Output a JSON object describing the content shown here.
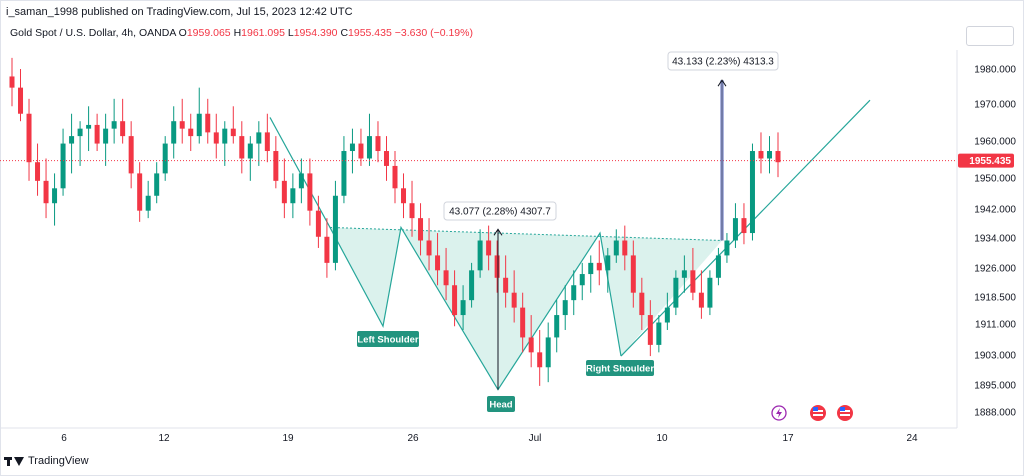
{
  "header": {
    "published": "i_saman_1998 published on TradingView.com, Jul 15, 2023 12:42 UTC"
  },
  "legend": {
    "symbol": "Gold Spot / U.S. Dollar, 4h, OANDA",
    "open_label": "O",
    "open": "1959.065",
    "high_label": "H",
    "high": "1961.095",
    "low_label": "L",
    "low": "1954.390",
    "close_label": "C",
    "close": "1955.435",
    "change": "−3.630 (−0.19%)"
  },
  "footer": {
    "brand": "TradingView"
  },
  "colors": {
    "up": "#089981",
    "down": "#f23645",
    "pattern": "#26a69a",
    "fill": "#d2efe9",
    "axis_text": "#131722"
  },
  "icons": [
    "lightning-icon",
    "us-flag-icon",
    "us-flag-icon"
  ],
  "chart_data": {
    "type": "candlestick",
    "y_axis": {
      "ticks": [
        "1980.000",
        "1970.000",
        "1960.000",
        "1950.000",
        "1942.000",
        "1934.000",
        "1926.000",
        "1918.500",
        "1911.000",
        "1903.000",
        "1895.000",
        "1888.000"
      ],
      "range": [
        1884,
        1993
      ]
    },
    "x_axis": {
      "ticks": [
        "6",
        "12",
        "19",
        "26",
        "Jul",
        "10",
        "17",
        "24"
      ]
    },
    "last_price": "1955.435",
    "annotations": {
      "left_shoulder": "Left Shoulder",
      "head": "Head",
      "right_shoulder": "Right Shoulder",
      "measure_head": "43.077 (2.28%) 4307.7",
      "measure_breakout": "43.133 (2.23%) 4313.3"
    },
    "pattern": {
      "type": "head-and-shoulders (inverse)",
      "neckline_from": 1937.5,
      "neckline_to": 1934.3,
      "left_shoulder_low": 1911,
      "head_low": 1894,
      "right_shoulder_low": 1903,
      "breakout_level": 1934,
      "target_level": 1977
    },
    "candles": [
      {
        "o": 1978,
        "h": 1983,
        "l": 1970,
        "c": 1975
      },
      {
        "o": 1975,
        "h": 1980,
        "l": 1966,
        "c": 1968
      },
      {
        "o": 1968,
        "h": 1972,
        "l": 1950,
        "c": 1955
      },
      {
        "o": 1955,
        "h": 1960,
        "l": 1946,
        "c": 1950
      },
      {
        "o": 1950,
        "h": 1956,
        "l": 1940,
        "c": 1944
      },
      {
        "o": 1944,
        "h": 1952,
        "l": 1938,
        "c": 1948
      },
      {
        "o": 1948,
        "h": 1964,
        "l": 1946,
        "c": 1960
      },
      {
        "o": 1960,
        "h": 1968,
        "l": 1952,
        "c": 1962
      },
      {
        "o": 1962,
        "h": 1966,
        "l": 1954,
        "c": 1964
      },
      {
        "o": 1964,
        "h": 1970,
        "l": 1958,
        "c": 1965
      },
      {
        "o": 1965,
        "h": 1968,
        "l": 1958,
        "c": 1960
      },
      {
        "o": 1960,
        "h": 1968,
        "l": 1954,
        "c": 1964
      },
      {
        "o": 1964,
        "h": 1972,
        "l": 1960,
        "c": 1966
      },
      {
        "o": 1966,
        "h": 1972,
        "l": 1960,
        "c": 1962
      },
      {
        "o": 1962,
        "h": 1966,
        "l": 1948,
        "c": 1952
      },
      {
        "o": 1952,
        "h": 1955,
        "l": 1939,
        "c": 1942
      },
      {
        "o": 1942,
        "h": 1950,
        "l": 1940,
        "c": 1946
      },
      {
        "o": 1946,
        "h": 1955,
        "l": 1944,
        "c": 1952
      },
      {
        "o": 1952,
        "h": 1962,
        "l": 1950,
        "c": 1960
      },
      {
        "o": 1960,
        "h": 1970,
        "l": 1956,
        "c": 1966
      },
      {
        "o": 1966,
        "h": 1972,
        "l": 1960,
        "c": 1964
      },
      {
        "o": 1964,
        "h": 1968,
        "l": 1958,
        "c": 1962
      },
      {
        "o": 1962,
        "h": 1975,
        "l": 1960,
        "c": 1968
      },
      {
        "o": 1968,
        "h": 1972,
        "l": 1960,
        "c": 1963
      },
      {
        "o": 1963,
        "h": 1968,
        "l": 1956,
        "c": 1960
      },
      {
        "o": 1960,
        "h": 1966,
        "l": 1954,
        "c": 1964
      },
      {
        "o": 1964,
        "h": 1970,
        "l": 1960,
        "c": 1962
      },
      {
        "o": 1962,
        "h": 1966,
        "l": 1952,
        "c": 1956
      },
      {
        "o": 1956,
        "h": 1962,
        "l": 1950,
        "c": 1960
      },
      {
        "o": 1960,
        "h": 1966,
        "l": 1954,
        "c": 1963
      },
      {
        "o": 1963,
        "h": 1968,
        "l": 1955,
        "c": 1958
      },
      {
        "o": 1958,
        "h": 1962,
        "l": 1948,
        "c": 1950
      },
      {
        "o": 1950,
        "h": 1956,
        "l": 1940,
        "c": 1944
      },
      {
        "o": 1944,
        "h": 1952,
        "l": 1940,
        "c": 1948
      },
      {
        "o": 1948,
        "h": 1956,
        "l": 1944,
        "c": 1952
      },
      {
        "o": 1952,
        "h": 1956,
        "l": 1938,
        "c": 1942
      },
      {
        "o": 1942,
        "h": 1946,
        "l": 1932,
        "c": 1935
      },
      {
        "o": 1935,
        "h": 1940,
        "l": 1924,
        "c": 1928
      },
      {
        "o": 1928,
        "h": 1950,
        "l": 1926,
        "c": 1946
      },
      {
        "o": 1946,
        "h": 1962,
        "l": 1944,
        "c": 1958
      },
      {
        "o": 1958,
        "h": 1964,
        "l": 1952,
        "c": 1960
      },
      {
        "o": 1960,
        "h": 1964,
        "l": 1954,
        "c": 1956
      },
      {
        "o": 1956,
        "h": 1968,
        "l": 1954,
        "c": 1962
      },
      {
        "o": 1962,
        "h": 1966,
        "l": 1955,
        "c": 1958
      },
      {
        "o": 1958,
        "h": 1962,
        "l": 1950,
        "c": 1954
      },
      {
        "o": 1954,
        "h": 1958,
        "l": 1944,
        "c": 1948
      },
      {
        "o": 1948,
        "h": 1952,
        "l": 1940,
        "c": 1944
      },
      {
        "o": 1944,
        "h": 1950,
        "l": 1935,
        "c": 1940
      },
      {
        "o": 1940,
        "h": 1944,
        "l": 1930,
        "c": 1934
      },
      {
        "o": 1934,
        "h": 1940,
        "l": 1926,
        "c": 1930
      },
      {
        "o": 1930,
        "h": 1936,
        "l": 1922,
        "c": 1926
      },
      {
        "o": 1926,
        "h": 1932,
        "l": 1918,
        "c": 1922
      },
      {
        "o": 1922,
        "h": 1926,
        "l": 1911,
        "c": 1914
      },
      {
        "o": 1914,
        "h": 1922,
        "l": 1910,
        "c": 1918
      },
      {
        "o": 1918,
        "h": 1928,
        "l": 1916,
        "c": 1926
      },
      {
        "o": 1926,
        "h": 1937,
        "l": 1924,
        "c": 1934
      },
      {
        "o": 1934,
        "h": 1938,
        "l": 1926,
        "c": 1930
      },
      {
        "o": 1930,
        "h": 1934,
        "l": 1920,
        "c": 1924
      },
      {
        "o": 1924,
        "h": 1930,
        "l": 1916,
        "c": 1920
      },
      {
        "o": 1920,
        "h": 1926,
        "l": 1912,
        "c": 1916
      },
      {
        "o": 1916,
        "h": 1920,
        "l": 1904,
        "c": 1908
      },
      {
        "o": 1908,
        "h": 1914,
        "l": 1900,
        "c": 1904
      },
      {
        "o": 1904,
        "h": 1910,
        "l": 1895,
        "c": 1900
      },
      {
        "o": 1900,
        "h": 1912,
        "l": 1896,
        "c": 1908
      },
      {
        "o": 1908,
        "h": 1918,
        "l": 1904,
        "c": 1914
      },
      {
        "o": 1914,
        "h": 1922,
        "l": 1910,
        "c": 1918
      },
      {
        "o": 1918,
        "h": 1926,
        "l": 1914,
        "c": 1922
      },
      {
        "o": 1922,
        "h": 1928,
        "l": 1918,
        "c": 1925
      },
      {
        "o": 1925,
        "h": 1930,
        "l": 1920,
        "c": 1928
      },
      {
        "o": 1928,
        "h": 1934,
        "l": 1922,
        "c": 1926
      },
      {
        "o": 1926,
        "h": 1932,
        "l": 1920,
        "c": 1930
      },
      {
        "o": 1930,
        "h": 1937,
        "l": 1928,
        "c": 1934
      },
      {
        "o": 1934,
        "h": 1938,
        "l": 1926,
        "c": 1930
      },
      {
        "o": 1930,
        "h": 1934,
        "l": 1916,
        "c": 1920
      },
      {
        "o": 1920,
        "h": 1924,
        "l": 1910,
        "c": 1914
      },
      {
        "o": 1914,
        "h": 1918,
        "l": 1903,
        "c": 1906
      },
      {
        "o": 1906,
        "h": 1914,
        "l": 1904,
        "c": 1912
      },
      {
        "o": 1912,
        "h": 1920,
        "l": 1910,
        "c": 1916
      },
      {
        "o": 1916,
        "h": 1926,
        "l": 1914,
        "c": 1924
      },
      {
        "o": 1924,
        "h": 1930,
        "l": 1920,
        "c": 1926
      },
      {
        "o": 1926,
        "h": 1932,
        "l": 1918,
        "c": 1920
      },
      {
        "o": 1920,
        "h": 1926,
        "l": 1913,
        "c": 1916
      },
      {
        "o": 1916,
        "h": 1926,
        "l": 1914,
        "c": 1924
      },
      {
        "o": 1924,
        "h": 1932,
        "l": 1922,
        "c": 1930
      },
      {
        "o": 1930,
        "h": 1936,
        "l": 1928,
        "c": 1934
      },
      {
        "o": 1934,
        "h": 1944,
        "l": 1932,
        "c": 1940
      },
      {
        "o": 1940,
        "h": 1944,
        "l": 1933,
        "c": 1936
      },
      {
        "o": 1936,
        "h": 1960,
        "l": 1934,
        "c": 1958
      },
      {
        "o": 1958,
        "h": 1963,
        "l": 1952,
        "c": 1956
      },
      {
        "o": 1956,
        "h": 1962,
        "l": 1952,
        "c": 1958
      },
      {
        "o": 1958,
        "h": 1963,
        "l": 1951,
        "c": 1955
      }
    ]
  }
}
